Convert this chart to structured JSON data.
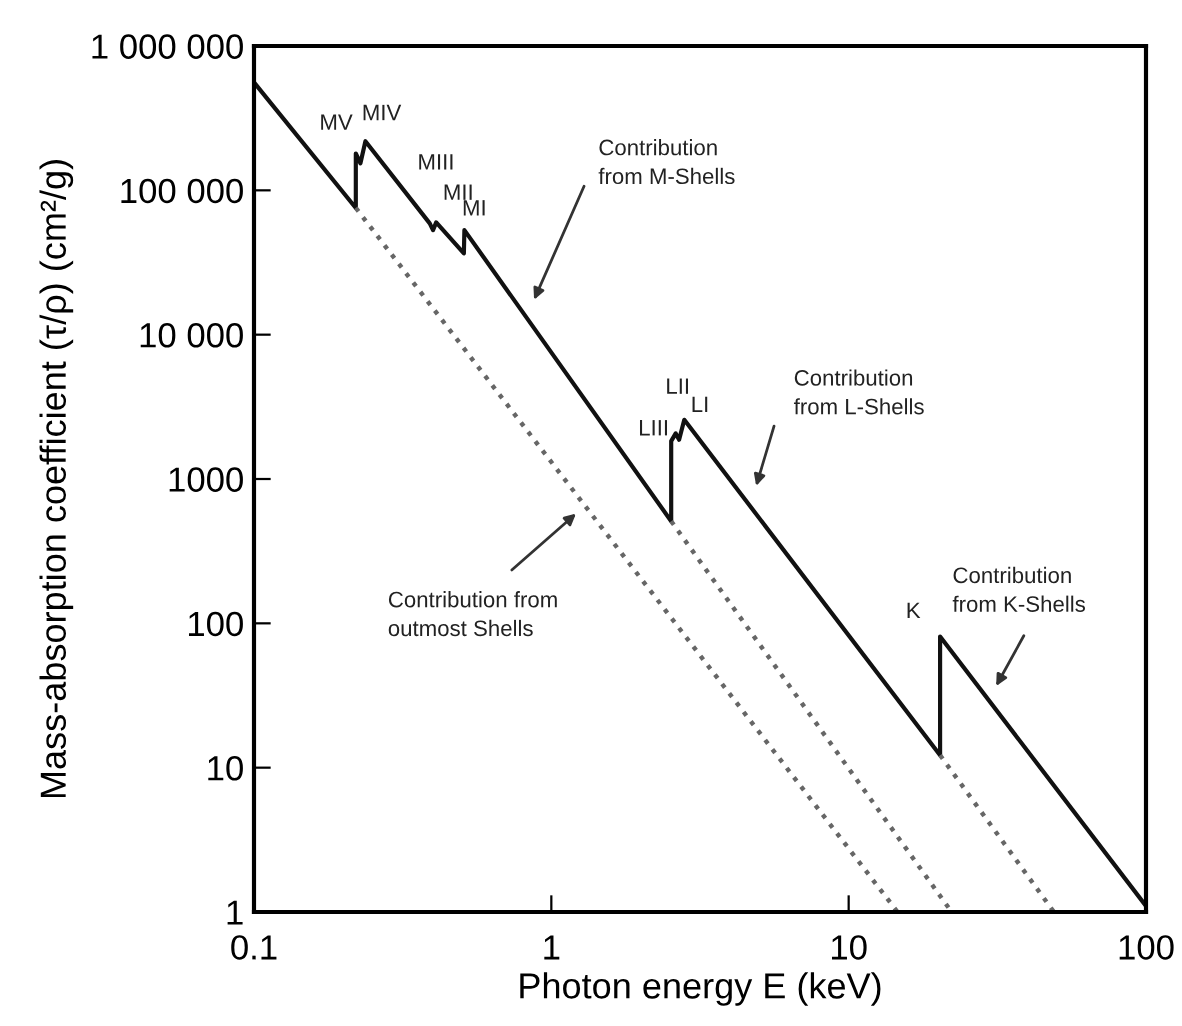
{
  "chart_data": {
    "type": "line",
    "xlabel": "Photon energy E (keV)",
    "ylabel": "Mass-absorption coefficient (τ/ρ) (cm²/g)",
    "log": "xy",
    "grid": false,
    "marker": "none",
    "xlim": [
      0.1,
      100
    ],
    "xticks": [
      0.1,
      1,
      10,
      100
    ],
    "ylim": [
      1,
      1000000
    ],
    "yticks": [
      {
        "value": 1,
        "label": "1"
      },
      {
        "value": 10,
        "label": "10"
      },
      {
        "value": 100,
        "label": "100"
      },
      {
        "value": 1000,
        "label": "1000"
      },
      {
        "value": 10000,
        "label": "10 000"
      },
      {
        "value": 100000,
        "label": "100 000"
      },
      {
        "value": 1000000,
        "label": "1 000 000"
      }
    ],
    "series": [
      {
        "color": "#111111",
        "line_style": "solid",
        "x": [
          0.1,
          0.22,
          0.22,
          0.228,
          0.237,
          0.39,
          0.4,
          0.41,
          0.508,
          0.51,
          2.53,
          2.53,
          2.62,
          2.69,
          2.8,
          20.3,
          20.3,
          100
        ],
        "values": [
          560000,
          75500,
          180000,
          154000,
          219000,
          59000,
          53000,
          60000,
          36600,
          53000,
          510,
          1830,
          2070,
          1870,
          2570,
          12.2,
          81,
          1.1
        ]
      },
      {
        "color": "#666666",
        "line_style": "dotted",
        "x": [
          0.22,
          14.6
        ],
        "values": [
          75500,
          1
        ]
      },
      {
        "color": "#666666",
        "line_style": "dotted",
        "x": [
          2.53,
          22.2
        ],
        "values": [
          510,
          1
        ]
      },
      {
        "color": "#666666",
        "line_style": "dotted",
        "x": [
          20.3,
          49
        ],
        "values": [
          12.2,
          1
        ]
      }
    ],
    "annotations": [
      "Contribution\nfrom M-Shells",
      "Contribution\nfrom L-Shells",
      "Contribution\nfrom K-Shells",
      "Contribution from\noutmost Shells",
      "MV",
      "MIV",
      "MIII",
      "MII",
      "MI",
      "LIII",
      "LII",
      "LI",
      "K"
    ]
  }
}
